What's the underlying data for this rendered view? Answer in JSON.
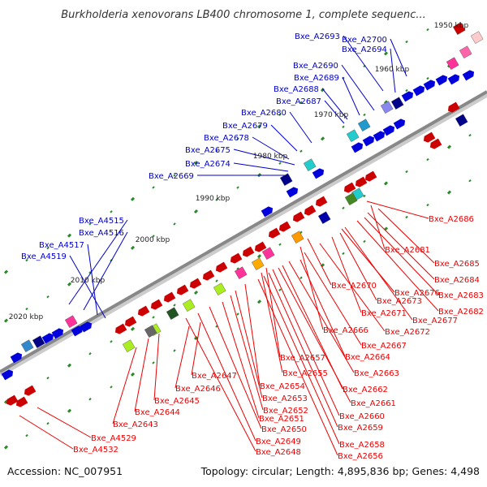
{
  "header": {
    "title": "Burkholderia xenovorans LB400 chromosome 1, complete sequenc..."
  },
  "footer": {
    "accession": "Accession: NC_007951",
    "summary": "Topology: circular; Length: 4,895,836 bp; Genes: 4,498"
  },
  "colors": {
    "forward_label": "#0000cc",
    "reverse_label": "#ee0000",
    "backbone": "#888888",
    "tick": "#2a8a2a"
  },
  "axis_labels": [
    "1950 kbp",
    "1960 kbp",
    "1970 kbp",
    "1980 kbp",
    "1990 kbp",
    "2000 kbp",
    "2010 kbp",
    "2020 kbp"
  ],
  "forward_genes": [
    "Bxe_A2693",
    "Bxe_A2700",
    "Bxe_A2694",
    "Bxe_A2690",
    "Bxe_A2689",
    "Bxe_A2688",
    "Bxe_A2687",
    "Bxe_A2680",
    "Bxe_A2679",
    "Bxe_A2678",
    "Bxe_A2675",
    "Bxe_A2674",
    "Bxe_A2669",
    "Bxe_A4515",
    "Bxe_A4516",
    "Bxe_A4517",
    "Bxe_A4519"
  ],
  "reverse_genes": [
    "Bxe_A2686",
    "Bxe_A2681",
    "Bxe_A2685",
    "Bxe_A2684",
    "Bxe_A2683",
    "Bxe_A2682",
    "Bxe_A2670",
    "Bxe_A2676",
    "Bxe_A2673",
    "Bxe_A2671",
    "Bxe_A2677",
    "Bxe_A2672",
    "Bxe_A2666",
    "Bxe_A2667",
    "Bxe_A2657",
    "Bxe_A2664",
    "Bxe_A2655",
    "Bxe_A2663",
    "Bxe_A2647",
    "Bxe_A2654",
    "Bxe_A2662",
    "Bxe_A2646",
    "Bxe_A2653",
    "Bxe_A2661",
    "Bxe_A2645",
    "Bxe_A2652",
    "Bxe_A2644",
    "Bxe_A2651",
    "Bxe_A2660",
    "Bxe_A2643",
    "Bxe_A2650",
    "Bxe_A2659",
    "Bxe_A2649",
    "Bxe_A4529",
    "Bxe_A2658",
    "Bxe_A2648",
    "Bxe_A4532",
    "Bxe_A2656"
  ]
}
